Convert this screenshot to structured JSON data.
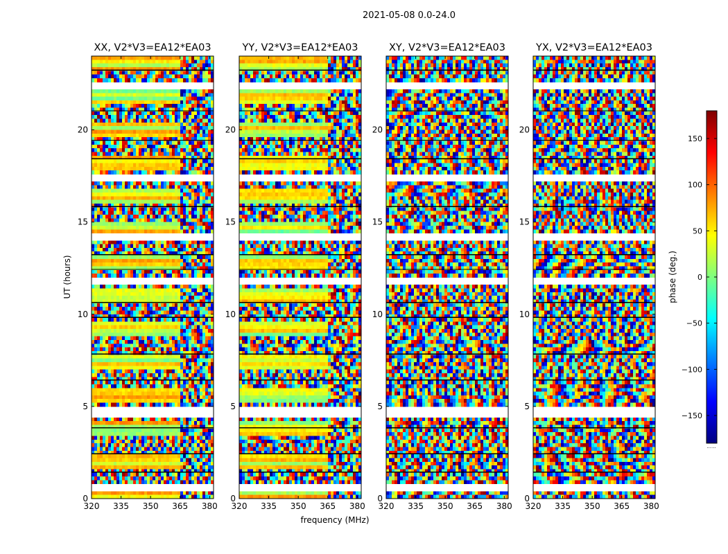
{
  "figure": {
    "suptitle": "2021-05-08 0.0-24.0",
    "xlabel": "frequency (MHz)",
    "ylabel": "UT (hours)"
  },
  "colorbar": {
    "label": "phase (deg.)",
    "ticks": [
      150,
      100,
      50,
      0,
      -50,
      -100,
      -150
    ],
    "tick_labels": [
      "150",
      "100",
      "50",
      "0",
      "−50",
      "−100",
      "−150"
    ],
    "range": [
      -180,
      180
    ],
    "colormap": [
      "#00007f",
      "#0000ff",
      "#007fff",
      "#00ffff",
      "#7fff7f",
      "#ffff00",
      "#ff7f00",
      "#ff0000",
      "#7f0000"
    ],
    "footer": "......"
  },
  "chart_data": [
    {
      "type": "heatmap",
      "title": "XX, V2*V3=EA12*EA03",
      "xlim": [
        320,
        382
      ],
      "ylim": [
        0,
        24
      ],
      "xticks": [
        320,
        335,
        350,
        365,
        380
      ],
      "yticks": [
        0,
        5,
        10,
        15,
        20
      ],
      "value": "phase (deg.)",
      "value_range": [
        -180,
        180
      ]
    },
    {
      "type": "heatmap",
      "title": "YY, V2*V3=EA12*EA03",
      "xlim": [
        320,
        382
      ],
      "ylim": [
        0,
        24
      ],
      "xticks": [
        320,
        335,
        350,
        365,
        380
      ],
      "yticks": [
        0,
        5,
        10,
        15,
        20
      ],
      "value": "phase (deg.)",
      "value_range": [
        -180,
        180
      ]
    },
    {
      "type": "heatmap",
      "title": "XY, V2*V3=EA12*EA03",
      "xlim": [
        320,
        382
      ],
      "ylim": [
        0,
        24
      ],
      "xticks": [
        320,
        335,
        350,
        365,
        380
      ],
      "yticks": [
        0,
        5,
        10,
        15,
        20
      ],
      "value": "phase (deg.)",
      "value_range": [
        -180,
        180
      ]
    },
    {
      "type": "heatmap",
      "title": "YX, V2*V3=EA12*EA03",
      "xlim": [
        320,
        382
      ],
      "ylim": [
        0,
        24
      ],
      "xticks": [
        320,
        335,
        350,
        365,
        380
      ],
      "yticks": [
        0,
        5,
        10,
        15,
        20
      ],
      "value": "phase (deg.)",
      "value_range": [
        -180,
        180
      ]
    }
  ]
}
